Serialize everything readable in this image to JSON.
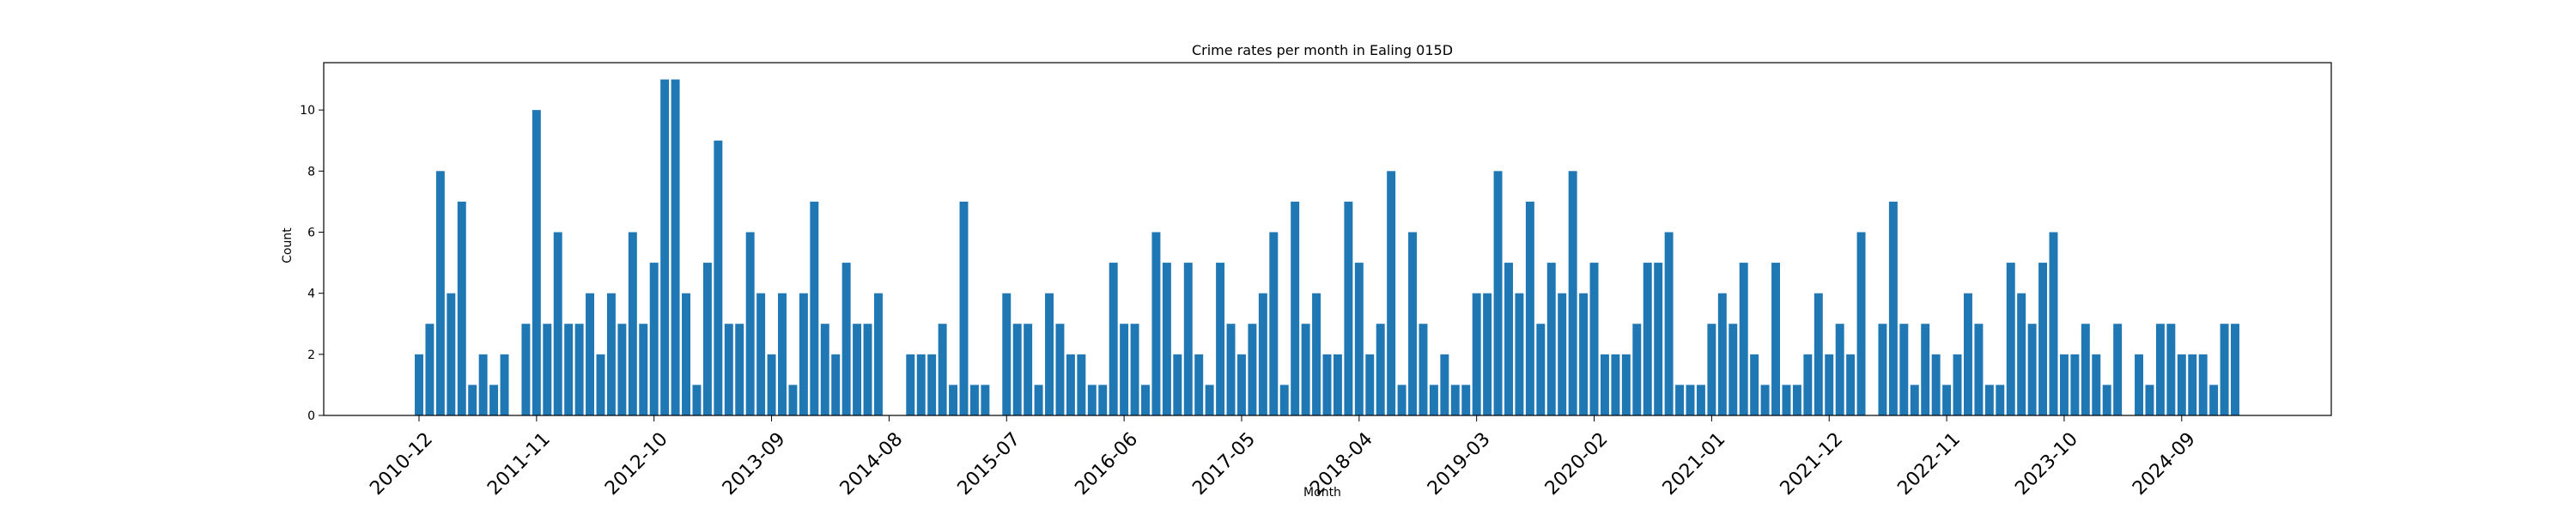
{
  "chart_data": {
    "type": "bar",
    "title": "Crime rates per month in Ealing 015D",
    "xlabel": "Month",
    "ylabel": "Count",
    "ylim": [
      0,
      11.55
    ],
    "yticks": [
      0,
      2,
      4,
      6,
      8,
      10
    ],
    "xtick_labels": [
      "2010-12",
      "2011-11",
      "2012-10",
      "2013-09",
      "2014-08",
      "2015-07",
      "2016-06",
      "2017-05",
      "2018-04",
      "2019-03",
      "2020-02",
      "2021-01",
      "2021-12",
      "2022-11",
      "2023-10",
      "2024-09"
    ],
    "grid": false,
    "legend": "none",
    "bar_color": "#1f77b4",
    "series": [
      {
        "values": [
          2,
          3,
          8,
          4,
          7,
          1,
          2,
          1,
          2,
          0,
          3,
          10,
          3,
          6,
          3,
          3,
          4,
          2,
          4,
          3,
          6,
          3,
          5,
          11,
          11,
          4,
          1,
          5,
          9,
          3,
          3,
          6,
          4,
          2,
          4,
          1,
          4,
          7,
          3,
          2,
          5,
          3,
          3,
          4,
          0,
          0,
          2,
          2,
          2,
          3,
          1,
          7,
          1,
          1,
          0,
          4,
          3,
          3,
          1,
          4,
          3,
          2,
          2,
          1,
          1,
          5,
          3,
          3,
          1,
          6,
          5,
          2,
          5,
          2,
          1,
          5,
          3,
          2,
          3,
          4,
          6,
          1,
          7,
          3,
          4,
          2,
          2,
          7,
          5,
          2,
          3,
          8,
          1,
          6,
          3,
          1,
          2,
          1,
          1,
          4,
          4,
          8,
          5,
          4,
          7,
          3,
          5,
          4,
          8,
          4,
          5,
          2,
          2,
          2,
          3,
          5,
          5,
          6,
          1,
          1,
          1,
          3,
          4,
          3,
          5,
          2,
          1,
          5,
          1,
          1,
          2,
          4,
          2,
          3,
          2,
          6,
          0,
          3,
          7,
          3,
          1,
          3,
          2,
          1,
          2,
          4,
          3,
          1,
          1,
          5,
          4,
          3,
          5,
          6,
          2,
          2,
          3,
          2,
          1,
          3,
          0,
          2,
          1,
          3,
          3,
          2,
          2,
          2,
          1,
          3,
          3
        ]
      }
    ]
  }
}
